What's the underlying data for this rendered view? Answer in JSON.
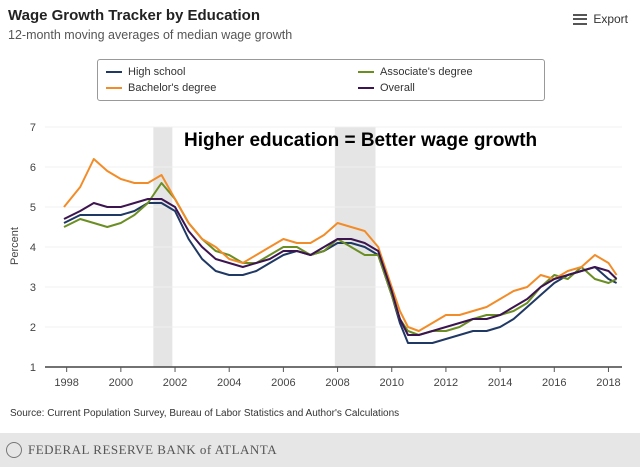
{
  "header": {
    "title": "Wage Growth Tracker by Education",
    "subtitle": "12-month moving averages of median wage growth",
    "export_label": "Export"
  },
  "source": "Source: Current Population Survey, Bureau of Labor Statistics and Author's Calculations",
  "footer": {
    "logo_text": "FEDERAL RESERVE BANK of ATLANTA"
  },
  "colors": {
    "high_school": "#1f3864",
    "associates": "#6b8e23",
    "bachelors": "#f28c28",
    "overall": "#3c1450"
  },
  "chart_data": {
    "type": "line",
    "title": "Wage Growth Tracker by Education",
    "xlabel": "",
    "ylabel": "Percent",
    "annotation": "Higher education = Better wage growth",
    "xlim": [
      1997.2,
      2018.5
    ],
    "ylim": [
      1,
      7
    ],
    "xticks": [
      1998,
      2000,
      2002,
      2004,
      2006,
      2008,
      2010,
      2012,
      2014,
      2016,
      2018
    ],
    "yticks": [
      1,
      2,
      3,
      4,
      5,
      6,
      7
    ],
    "recessions": [
      [
        2001.2,
        2001.9
      ],
      [
        2007.9,
        2009.4
      ]
    ],
    "legend": "top",
    "series": [
      {
        "name": "High school",
        "color": "#1f3864",
        "x": [
          1997.9,
          1998.5,
          1999.0,
          1999.5,
          2000.0,
          2000.5,
          2001.0,
          2001.5,
          2002.0,
          2002.5,
          2003.0,
          2003.5,
          2004.0,
          2004.5,
          2005.0,
          2005.5,
          2006.0,
          2006.5,
          2007.0,
          2007.5,
          2008.0,
          2008.5,
          2009.0,
          2009.5,
          2010.0,
          2010.3,
          2010.6,
          2011.0,
          2011.5,
          2012.0,
          2012.5,
          2013.0,
          2013.5,
          2014.0,
          2014.5,
          2015.0,
          2015.5,
          2016.0,
          2016.5,
          2017.0,
          2017.5,
          2018.0,
          2018.3
        ],
        "y": [
          4.6,
          4.8,
          4.8,
          4.8,
          4.8,
          4.9,
          5.1,
          5.1,
          4.9,
          4.2,
          3.7,
          3.4,
          3.3,
          3.3,
          3.4,
          3.6,
          3.8,
          3.9,
          3.8,
          3.9,
          4.1,
          4.1,
          4.0,
          3.8,
          2.8,
          2.1,
          1.6,
          1.6,
          1.6,
          1.7,
          1.8,
          1.9,
          1.9,
          2.0,
          2.2,
          2.5,
          2.8,
          3.1,
          3.3,
          3.4,
          3.5,
          3.2,
          3.1
        ]
      },
      {
        "name": "Associate's degree",
        "color": "#6b8e23",
        "x": [
          1997.9,
          1998.5,
          1999.0,
          1999.5,
          2000.0,
          2000.5,
          2001.0,
          2001.5,
          2002.0,
          2002.5,
          2003.0,
          2003.5,
          2004.0,
          2004.5,
          2005.0,
          2005.5,
          2006.0,
          2006.5,
          2007.0,
          2007.5,
          2008.0,
          2008.5,
          2009.0,
          2009.5,
          2010.0,
          2010.3,
          2010.6,
          2011.0,
          2011.5,
          2012.0,
          2012.5,
          2013.0,
          2013.5,
          2014.0,
          2014.5,
          2015.0,
          2015.5,
          2016.0,
          2016.5,
          2017.0,
          2017.5,
          2018.0,
          2018.3
        ],
        "y": [
          4.5,
          4.7,
          4.6,
          4.5,
          4.6,
          4.8,
          5.1,
          5.6,
          5.2,
          4.6,
          4.2,
          3.9,
          3.8,
          3.6,
          3.6,
          3.8,
          4.0,
          4.0,
          3.8,
          3.9,
          4.2,
          4.0,
          3.8,
          3.8,
          2.8,
          2.2,
          1.9,
          1.8,
          1.9,
          1.9,
          2.0,
          2.2,
          2.3,
          2.3,
          2.4,
          2.6,
          3.0,
          3.3,
          3.2,
          3.5,
          3.2,
          3.1,
          3.2
        ]
      },
      {
        "name": "Bachelor's degree",
        "color": "#f28c28",
        "x": [
          1997.9,
          1998.5,
          1999.0,
          1999.5,
          2000.0,
          2000.5,
          2001.0,
          2001.5,
          2002.0,
          2002.5,
          2003.0,
          2003.5,
          2004.0,
          2004.5,
          2005.0,
          2005.5,
          2006.0,
          2006.5,
          2007.0,
          2007.5,
          2008.0,
          2008.5,
          2009.0,
          2009.5,
          2010.0,
          2010.3,
          2010.6,
          2011.0,
          2011.5,
          2012.0,
          2012.5,
          2013.0,
          2013.5,
          2014.0,
          2014.5,
          2015.0,
          2015.5,
          2016.0,
          2016.5,
          2017.0,
          2017.5,
          2018.0,
          2018.3
        ],
        "y": [
          5.0,
          5.5,
          6.2,
          5.9,
          5.7,
          5.6,
          5.6,
          5.8,
          5.2,
          4.6,
          4.2,
          4.0,
          3.7,
          3.6,
          3.8,
          4.0,
          4.2,
          4.1,
          4.1,
          4.3,
          4.6,
          4.5,
          4.4,
          4.0,
          3.0,
          2.4,
          2.0,
          1.9,
          2.1,
          2.3,
          2.3,
          2.4,
          2.5,
          2.7,
          2.9,
          3.0,
          3.3,
          3.2,
          3.4,
          3.5,
          3.8,
          3.6,
          3.3
        ]
      },
      {
        "name": "Overall",
        "color": "#3c1450",
        "x": [
          1997.9,
          1998.5,
          1999.0,
          1999.5,
          2000.0,
          2000.5,
          2001.0,
          2001.5,
          2002.0,
          2002.5,
          2003.0,
          2003.5,
          2004.0,
          2004.5,
          2005.0,
          2005.5,
          2006.0,
          2006.5,
          2007.0,
          2007.5,
          2008.0,
          2008.5,
          2009.0,
          2009.5,
          2010.0,
          2010.3,
          2010.6,
          2011.0,
          2011.5,
          2012.0,
          2012.5,
          2013.0,
          2013.5,
          2014.0,
          2014.5,
          2015.0,
          2015.5,
          2016.0,
          2016.5,
          2017.0,
          2017.5,
          2018.0,
          2018.3
        ],
        "y": [
          4.7,
          4.9,
          5.1,
          5.0,
          5.0,
          5.1,
          5.2,
          5.2,
          5.0,
          4.4,
          4.0,
          3.7,
          3.6,
          3.5,
          3.6,
          3.7,
          3.9,
          3.9,
          3.8,
          4.0,
          4.2,
          4.2,
          4.1,
          3.9,
          2.9,
          2.2,
          1.8,
          1.8,
          1.9,
          2.0,
          2.1,
          2.2,
          2.2,
          2.3,
          2.5,
          2.7,
          3.0,
          3.2,
          3.3,
          3.4,
          3.5,
          3.4,
          3.2
        ]
      }
    ]
  }
}
